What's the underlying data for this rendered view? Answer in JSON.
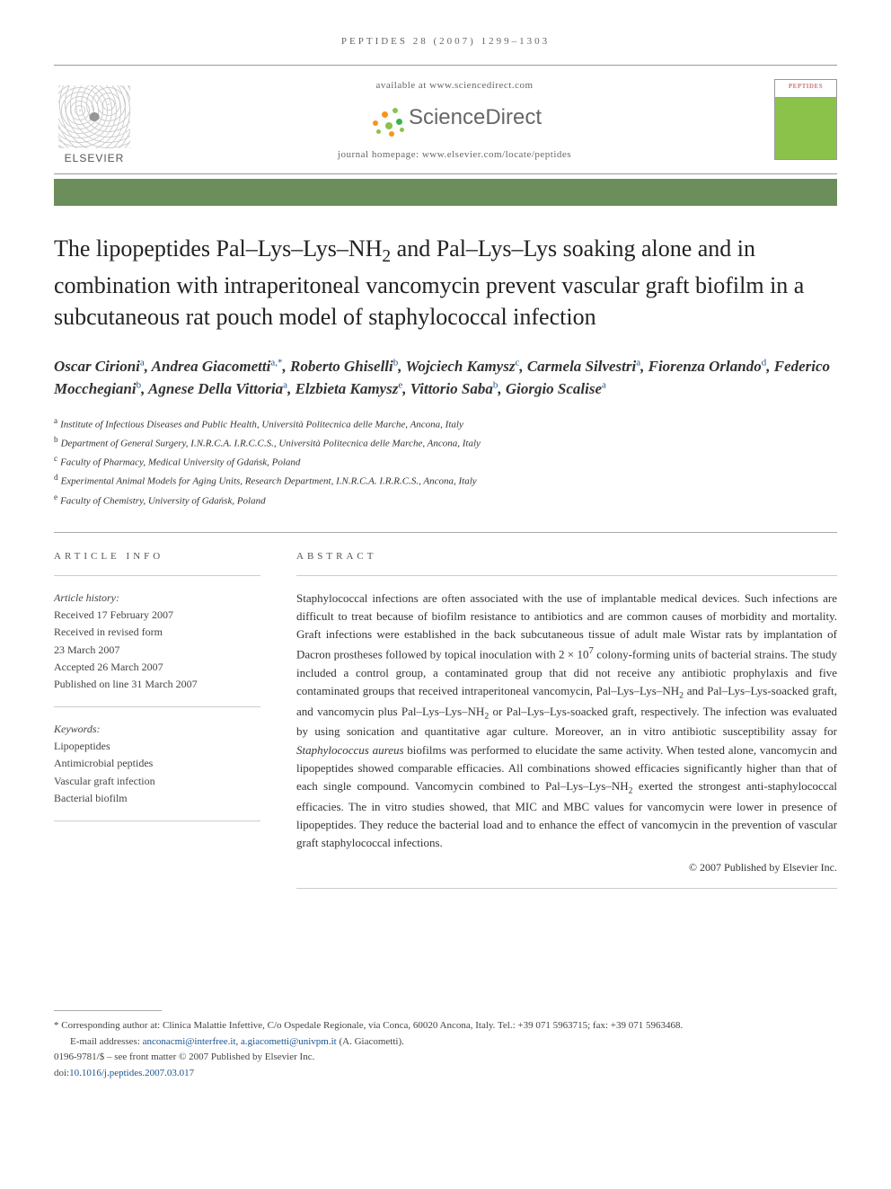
{
  "page_header": "PEPTIDES 28 (2007) 1299–1303",
  "top_bar": {
    "elsevier_label": "ELSEVIER",
    "available_text": "available at www.sciencedirect.com",
    "sciencedirect_label": "ScienceDirect",
    "journal_homepage": "journal homepage: www.elsevier.com/locate/peptides",
    "cover_title": "PEPTIDES"
  },
  "sd_dot_colors": [
    "#f7941e",
    "#f7941e",
    "#8bc34a",
    "#8bc34a",
    "#39b54a",
    "#8bc34a",
    "#f7941e",
    "#8bc34a"
  ],
  "green_bar_color": "#6b8e5a",
  "title_html": "The lipopeptides Pal–Lys–Lys–NH<sub>2</sub> and Pal–Lys–Lys soaking alone and in combination with intraperitoneal vancomycin prevent vascular graft biofilm in a subcutaneous rat pouch model of staphylococcal infection",
  "authors": [
    {
      "name": "Oscar Cirioni",
      "sup": "a"
    },
    {
      "name": "Andrea Giacometti",
      "sup": "a,*"
    },
    {
      "name": "Roberto Ghiselli",
      "sup": "b"
    },
    {
      "name": "Wojciech Kamysz",
      "sup": "c"
    },
    {
      "name": "Carmela Silvestri",
      "sup": "a"
    },
    {
      "name": "Fiorenza Orlando",
      "sup": "d"
    },
    {
      "name": "Federico Mocchegiani",
      "sup": "b"
    },
    {
      "name": "Agnese Della Vittoria",
      "sup": "a"
    },
    {
      "name": "Elzbieta Kamysz",
      "sup": "e"
    },
    {
      "name": "Vittorio Saba",
      "sup": "b"
    },
    {
      "name": "Giorgio Scalise",
      "sup": "a"
    }
  ],
  "affiliations": [
    {
      "sup": "a",
      "text": "Institute of Infectious Diseases and Public Health, Università Politecnica delle Marche, Ancona, Italy"
    },
    {
      "sup": "b",
      "text": "Department of General Surgery, I.N.R.C.A. I.R.C.C.S., Università Politecnica delle Marche, Ancona, Italy"
    },
    {
      "sup": "c",
      "text": "Faculty of Pharmacy, Medical University of Gdańsk, Poland"
    },
    {
      "sup": "d",
      "text": "Experimental Animal Models for Aging Units, Research Department, I.N.R.C.A. I.R.R.C.S., Ancona, Italy"
    },
    {
      "sup": "e",
      "text": "Faculty of Chemistry, University of Gdańsk, Poland"
    }
  ],
  "article_info": {
    "label": "ARTICLE INFO",
    "history_header": "Article history:",
    "history": [
      "Received 17 February 2007",
      "Received in revised form",
      "23 March 2007",
      "Accepted 26 March 2007",
      "Published on line 31 March 2007"
    ],
    "keywords_header": "Keywords:",
    "keywords": [
      "Lipopeptides",
      "Antimicrobial peptides",
      "Vascular graft infection",
      "Bacterial biofilm"
    ]
  },
  "abstract": {
    "label": "ABSTRACT",
    "text_html": "Staphylococcal infections are often associated with the use of implantable medical devices. Such infections are difficult to treat because of biofilm resistance to antibiotics and are common causes of morbidity and mortality. Graft infections were established in the back subcutaneous tissue of adult male Wistar rats by implantation of Dacron prostheses followed by topical inoculation with 2 × 10<sup>7</sup> colony-forming units of bacterial strains. The study included a control group, a contaminated group that did not receive any antibiotic prophylaxis and five contaminated groups that received intraperitoneal vancomycin, Pal–Lys–Lys–NH<sub>2</sub> and Pal–Lys–Lys-soacked graft, and vancomycin plus Pal–Lys–Lys–NH<sub>2</sub> or Pal–Lys–Lys-soacked graft, respectively. The infection was evaluated by using sonication and quantitative agar culture. Moreover, an in vitro antibiotic susceptibility assay for <i>Staphylococcus aureus</i> biofilms was performed to elucidate the same activity. When tested alone, vancomycin and lipopeptides showed comparable efficacies. All combinations showed efficacies significantly higher than that of each single compound. Vancomycin combined to Pal–Lys–Lys–NH<sub>2</sub> exerted the strongest anti-staphylococcal efficacies. The in vitro studies showed, that MIC and MBC values for vancomycin were lower in presence of lipopeptides. They reduce the bacterial load and to enhance the effect of vancomycin in the prevention of vascular graft staphylococcal infections.",
    "copyright": "© 2007 Published by Elsevier Inc."
  },
  "footer": {
    "corresponding": "* Corresponding author at: Clinica Malattie Infettive, C/o Ospedale Regionale, via Conca, 60020 Ancona, Italy. Tel.: +39 071 5963715; fax: +39 071 5963468.",
    "email_label": "E-mail addresses: ",
    "emails": [
      "anconacmi@interfree.it",
      "a.giacometti@univpm.it"
    ],
    "email_suffix": " (A. Giacometti).",
    "issn": "0196-9781/$ – see front matter © 2007 Published by Elsevier Inc.",
    "doi_label": "doi:",
    "doi": "10.1016/j.peptides.2007.03.017"
  },
  "colors": {
    "link": "#1a5490",
    "text": "#333333",
    "muted": "#666666",
    "rule": "#aaaaaa"
  }
}
